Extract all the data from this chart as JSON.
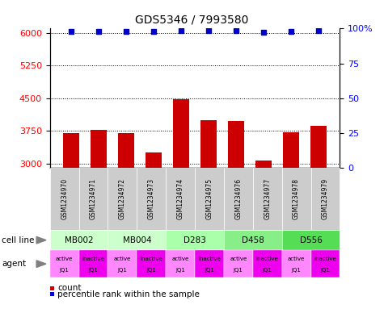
{
  "title": "GDS5346 / 7993580",
  "samples": [
    "GSM1234970",
    "GSM1234971",
    "GSM1234972",
    "GSM1234973",
    "GSM1234974",
    "GSM1234975",
    "GSM1234976",
    "GSM1234977",
    "GSM1234978",
    "GSM1234979"
  ],
  "bar_values": [
    3700,
    3780,
    3700,
    3250,
    4480,
    4000,
    3980,
    3070,
    3720,
    3870
  ],
  "percentile_values": [
    98,
    98,
    98,
    98,
    98.5,
    98.5,
    98.5,
    97.5,
    98,
    98.5
  ],
  "ylim_left": [
    2900,
    6100
  ],
  "ylim_right": [
    0,
    100
  ],
  "yticks_left": [
    3000,
    3750,
    4500,
    5250,
    6000
  ],
  "yticks_right": [
    0,
    25,
    50,
    75,
    100
  ],
  "bar_color": "#cc0000",
  "dot_color": "#0000cc",
  "cell_lines": [
    {
      "label": "MB002",
      "cols": [
        0,
        1
      ],
      "color": "#ccffcc"
    },
    {
      "label": "MB004",
      "cols": [
        2,
        3
      ],
      "color": "#ccffcc"
    },
    {
      "label": "D283",
      "cols": [
        4,
        5
      ],
      "color": "#aaffaa"
    },
    {
      "label": "D458",
      "cols": [
        6,
        7
      ],
      "color": "#88ee88"
    },
    {
      "label": "D556",
      "cols": [
        8,
        9
      ],
      "color": "#55dd55"
    }
  ],
  "agents": [
    "active",
    "inactive",
    "active",
    "inactive",
    "active",
    "inactive",
    "active",
    "inactive",
    "active",
    "inactive"
  ],
  "agent_label2": "JQ1",
  "active_color": "#ff88ff",
  "inactive_color": "#ee00ee",
  "cell_line_row_label": "cell line",
  "agent_row_label": "agent",
  "legend_count_color": "#cc0000",
  "legend_pct_color": "#0000cc",
  "background_color": "#ffffff",
  "gsm_box_color": "#cccccc"
}
